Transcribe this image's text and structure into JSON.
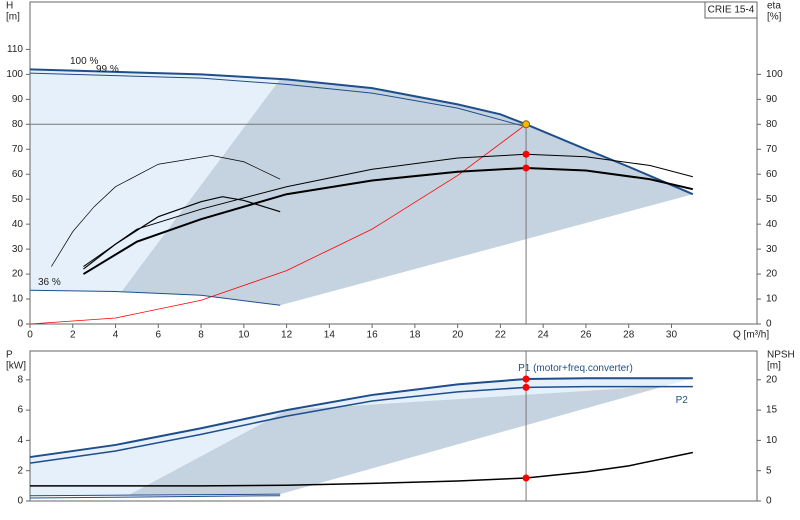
{
  "chart_data": [
    {
      "type": "line",
      "title": "CRIE 15-4",
      "x_label": "Q [m³/h]",
      "y_label": [
        "H",
        "[m]"
      ],
      "y2_label": [
        "eta",
        "[%]"
      ],
      "xlim": [
        0,
        34
      ],
      "ylim": [
        0,
        129
      ],
      "y2lim": [
        0,
        129
      ],
      "xticks": [
        0,
        2,
        4,
        6,
        8,
        10,
        12,
        14,
        16,
        18,
        20,
        22,
        24,
        26,
        28,
        30
      ],
      "yticks": [
        0,
        10,
        20,
        30,
        40,
        50,
        60,
        70,
        80,
        90,
        100,
        110
      ],
      "y2ticks": [
        0,
        10,
        20,
        30,
        40,
        50,
        60,
        70,
        80,
        90,
        100
      ],
      "duty": {
        "x": 23.2,
        "y": 80
      },
      "series": [
        {
          "name": "100 %",
          "color": "#1f4e8c",
          "width": 2,
          "marker_color": "#f5b800",
          "x": [
            0,
            4,
            8,
            12,
            16,
            20,
            22,
            23.2,
            26,
            28,
            31
          ],
          "values": [
            102,
            101,
            100,
            98,
            94.5,
            88,
            84,
            80,
            70,
            63,
            52
          ]
        },
        {
          "name": "99 %",
          "color": "#1f4e8c",
          "width": 1,
          "x": [
            0,
            4,
            8,
            12,
            16,
            20,
            23.2
          ],
          "values": [
            100.5,
            99.5,
            98.5,
            96,
            92.5,
            86.5,
            79
          ]
        },
        {
          "name": "36 %",
          "color": "#1f4e8c",
          "width": 1,
          "x": [
            0,
            4,
            8,
            11.7
          ],
          "values": [
            13.5,
            13,
            11.5,
            7.5
          ]
        },
        {
          "color": "#ff0000",
          "width": 0.8,
          "x": [
            0,
            4,
            8,
            12,
            16,
            20,
            23.2
          ],
          "values": [
            0,
            2.4,
            9.5,
            21.4,
            38,
            59.5,
            80
          ]
        },
        {
          "color": "#000000",
          "width": 1,
          "axis": "y2",
          "marker_color": "#ff0000",
          "x": [
            2.5,
            5,
            8,
            12,
            16,
            20,
            23.2,
            26,
            29,
            31
          ],
          "values": [
            23,
            38,
            46,
            55,
            62,
            66.5,
            68,
            67,
            63.5,
            59
          ]
        },
        {
          "color": "#000000",
          "width": 2,
          "axis": "y2",
          "marker_color": "#ff0000",
          "x": [
            2.5,
            5,
            8,
            12,
            16,
            20,
            23.2,
            26,
            29,
            31
          ],
          "values": [
            20,
            33,
            42,
            52,
            57.5,
            61,
            62.5,
            61.5,
            58,
            54
          ]
        },
        {
          "color": "#000000",
          "width": 0.7,
          "axis": "y2",
          "x": [
            1,
            2,
            3,
            4,
            6,
            8.5,
            10,
            11.7
          ],
          "values": [
            23,
            37,
            47,
            55,
            64,
            67.5,
            65,
            58
          ]
        },
        {
          "color": "#000000",
          "width": 1.2,
          "axis": "y2",
          "x": [
            2.5,
            4,
            6,
            8,
            9,
            10,
            11.7
          ],
          "values": [
            22,
            32,
            43,
            49,
            51,
            49.5,
            45
          ]
        }
      ]
    },
    {
      "type": "line",
      "y_label": [
        "P",
        "[kW]"
      ],
      "y2_label": [
        "NPSH",
        "[m]"
      ],
      "xlim": [
        0,
        34
      ],
      "ylim": [
        0,
        9.9
      ],
      "y2lim": [
        0,
        24.75
      ],
      "yticks": [
        0,
        2,
        4,
        6,
        8
      ],
      "y2ticks": [
        0,
        5,
        10,
        15,
        20
      ],
      "duty": {
        "x": 23.2
      },
      "series": [
        {
          "name": "P1 (motor+freq.converter)",
          "color": "#1f4e8c",
          "width": 2,
          "marker_color": "#ff0000",
          "x": [
            0,
            4,
            8,
            12,
            16,
            20,
            23.2,
            26,
            31
          ],
          "values": [
            2.9,
            3.7,
            4.8,
            6.0,
            7.0,
            7.7,
            8.05,
            8.1,
            8.1
          ]
        },
        {
          "name": "P2",
          "color": "#1f4e8c",
          "width": 1.5,
          "marker_color": "#ff0000",
          "x": [
            0,
            4,
            8,
            12,
            16,
            20,
            23.2,
            26,
            31
          ],
          "values": [
            2.5,
            3.3,
            4.4,
            5.6,
            6.6,
            7.2,
            7.5,
            7.55,
            7.55
          ]
        },
        {
          "color": "#1f4e8c",
          "width": 1,
          "x": [
            0,
            11.7
          ],
          "values": [
            0.35,
            0.45
          ]
        },
        {
          "color": "#1f4e8c",
          "width": 1,
          "x": [
            0,
            11.7
          ],
          "values": [
            0.2,
            0.35
          ]
        },
        {
          "color": "#000000",
          "width": 1.5,
          "axis": "y2",
          "marker_color": "#ff0000",
          "x": [
            0,
            8,
            12,
            16,
            20,
            23.2,
            26,
            28,
            31
          ],
          "values": [
            2.5,
            2.5,
            2.6,
            2.9,
            3.3,
            3.8,
            4.8,
            5.8,
            8
          ]
        }
      ]
    }
  ]
}
